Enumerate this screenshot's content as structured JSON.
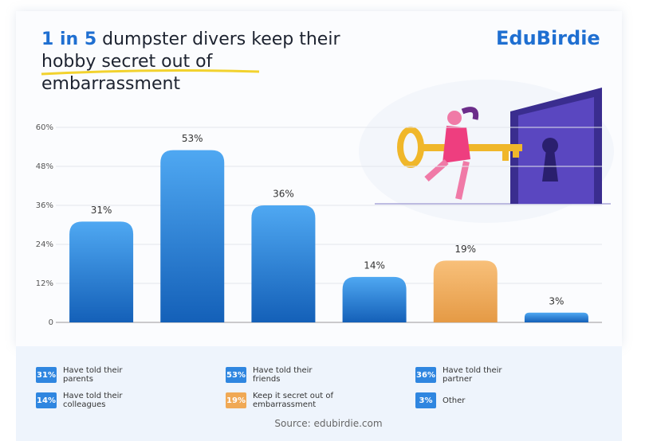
{
  "chart_data": {
    "type": "bar",
    "title_highlight": "1 in 5",
    "title": "dumpster divers keep their hobby secret out of embarrassment",
    "brand": "EduBirdie",
    "source": "Source: edubirdie.com",
    "categories": [
      "Have told their parents",
      "Have told their friends",
      "Have told their partner",
      "Have told their colleagues",
      "Keep it secret out of embarrassment",
      "Other"
    ],
    "values": [
      31,
      53,
      36,
      14,
      19,
      3
    ],
    "value_labels": [
      "31%",
      "53%",
      "36%",
      "14%",
      "19%",
      "3%"
    ],
    "colors": [
      "#2f86e0",
      "#2f86e0",
      "#2f86e0",
      "#2f86e0",
      "#f0a955",
      "#2f86e0"
    ],
    "ylim": [
      0,
      60
    ],
    "yticks": [
      0,
      {
        "value": 12,
        "label": "12%"
      },
      {
        "value": 24,
        "label": "24%"
      },
      {
        "value": 36,
        "label": "36%"
      },
      {
        "value": 48,
        "label": "48%"
      },
      {
        "value": 60,
        "label": "60%"
      }
    ],
    "grid": true
  }
}
